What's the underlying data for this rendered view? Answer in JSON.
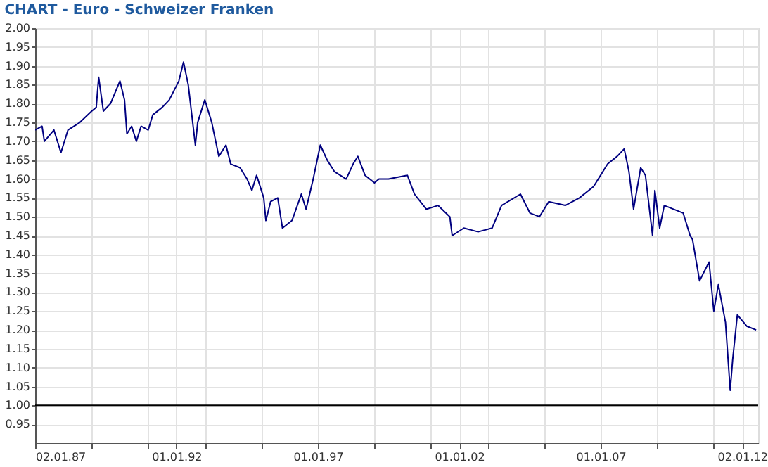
{
  "chart_data": {
    "type": "line",
    "title": "CHART - Euro - Schweizer Franken",
    "x": [
      "1987-01-02",
      "1987-04",
      "1987-05",
      "1987-09",
      "1987-12",
      "1988-03",
      "1988-08",
      "1989-01",
      "1989-03",
      "1989-04",
      "1989-06",
      "1989-09",
      "1990-01",
      "1990-03",
      "1990-04",
      "1990-06",
      "1990-08",
      "1990-10",
      "1991-01",
      "1991-03",
      "1991-07",
      "1991-10",
      "1992-02",
      "1992-04",
      "1992-06",
      "1992-09",
      "1992-10",
      "1993-01",
      "1993-04",
      "1993-07",
      "1993-10",
      "1993-12",
      "1994-04",
      "1994-07",
      "1994-09",
      "1994-11",
      "1995-02",
      "1995-03",
      "1995-05",
      "1995-08",
      "1995-10",
      "1996-02",
      "1996-06",
      "1996-08",
      "1996-11",
      "1997-02",
      "1997-05",
      "1997-08",
      "1998-01",
      "1998-04",
      "1998-06",
      "1998-09",
      "1999-01",
      "1999-03",
      "1999-07",
      "2000-03",
      "2000-06",
      "2000-11",
      "2001-04",
      "2001-09",
      "2001-10",
      "2002-03",
      "2002-09",
      "2003-03",
      "2003-07",
      "2004-03",
      "2004-07",
      "2004-11",
      "2005-03",
      "2005-10",
      "2006-04",
      "2006-10",
      "2007-04",
      "2007-08",
      "2007-11",
      "2008-01",
      "2008-03",
      "2008-06",
      "2008-08",
      "2008-11",
      "2008-12",
      "2009-02",
      "2009-04",
      "2009-12",
      "2010-03",
      "2010-04",
      "2010-07",
      "2010-11",
      "2011-01",
      "2011-03",
      "2011-06",
      "2011-08",
      "2011-09",
      "2011-11",
      "2012-03",
      "2012-07"
    ],
    "series": [
      {
        "color": "#000080",
        "values": [
          1.73,
          1.74,
          1.7,
          1.73,
          1.67,
          1.73,
          1.75,
          1.78,
          1.79,
          1.87,
          1.78,
          1.8,
          1.86,
          1.81,
          1.72,
          1.74,
          1.7,
          1.74,
          1.73,
          1.77,
          1.79,
          1.81,
          1.86,
          1.91,
          1.85,
          1.69,
          1.75,
          1.81,
          1.75,
          1.66,
          1.69,
          1.64,
          1.63,
          1.6,
          1.57,
          1.61,
          1.55,
          1.49,
          1.54,
          1.55,
          1.47,
          1.49,
          1.56,
          1.52,
          1.6,
          1.69,
          1.65,
          1.62,
          1.6,
          1.64,
          1.66,
          1.61,
          1.59,
          1.6,
          1.6,
          1.61,
          1.56,
          1.52,
          1.53,
          1.5,
          1.45,
          1.47,
          1.46,
          1.47,
          1.53,
          1.56,
          1.51,
          1.5,
          1.54,
          1.53,
          1.55,
          1.58,
          1.64,
          1.66,
          1.68,
          1.62,
          1.52,
          1.63,
          1.61,
          1.45,
          1.57,
          1.47,
          1.53,
          1.51,
          1.45,
          1.44,
          1.33,
          1.38,
          1.25,
          1.32,
          1.22,
          1.04,
          1.12,
          1.24,
          1.21,
          1.2
        ]
      }
    ],
    "xlim": [
      "1987-01-02",
      "2012-07-27"
    ],
    "xticks": [
      {
        "value": "1987-01-02",
        "label": "02.01.87"
      },
      {
        "value": "1989-01-01",
        "label": null
      },
      {
        "value": "1991-01-01",
        "label": null
      },
      {
        "value": "1992-01-01",
        "label": "01.01.92"
      },
      {
        "value": "1993-01-01",
        "label": null
      },
      {
        "value": "1995-01-01",
        "label": null
      },
      {
        "value": "1997-01-01",
        "label": "01.01.97"
      },
      {
        "value": "1999-01-01",
        "label": null
      },
      {
        "value": "2001-01-01",
        "label": null
      },
      {
        "value": "2002-01-01",
        "label": "01.01.02"
      },
      {
        "value": "2003-01-01",
        "label": null
      },
      {
        "value": "2005-01-01",
        "label": null
      },
      {
        "value": "2007-01-01",
        "label": "01.01.07"
      },
      {
        "value": "2009-01-01",
        "label": null
      },
      {
        "value": "2011-01-01",
        "label": null
      },
      {
        "value": "2012-01-02",
        "label": "02.01.12"
      }
    ],
    "ylim": [
      0.9,
      2.0
    ],
    "yticks": [
      {
        "value": 0.95,
        "label": "0.95"
      },
      {
        "value": 1,
        "label": "1.00"
      },
      {
        "value": 1.05,
        "label": "1.05"
      },
      {
        "value": 1.1,
        "label": "1.10"
      },
      {
        "value": 1.15,
        "label": "1.15"
      },
      {
        "value": 1.2,
        "label": "1.20"
      },
      {
        "value": 1.25,
        "label": "1.25"
      },
      {
        "value": 1.3,
        "label": "1.30"
      },
      {
        "value": 1.35,
        "label": "1.35"
      },
      {
        "value": 1.4,
        "label": "1.40"
      },
      {
        "value": 1.45,
        "label": "1.45"
      },
      {
        "value": 1.5,
        "label": "1.50"
      },
      {
        "value": 1.55,
        "label": "1.55"
      },
      {
        "value": 1.6,
        "label": "1.60"
      },
      {
        "value": 1.65,
        "label": "1.65"
      },
      {
        "value": 1.7,
        "label": "1.70"
      },
      {
        "value": 1.75,
        "label": "1.75"
      },
      {
        "value": 1.8,
        "label": "1.80"
      },
      {
        "value": 1.85,
        "label": "1.85"
      },
      {
        "value": 1.9,
        "label": "1.90"
      },
      {
        "value": 1.95,
        "label": "1.95"
      },
      {
        "value": 2,
        "label": "2.00"
      }
    ],
    "ref_lines": [
      {
        "axis": "y",
        "value": 1,
        "color": "#000000"
      }
    ],
    "grid": true
  }
}
